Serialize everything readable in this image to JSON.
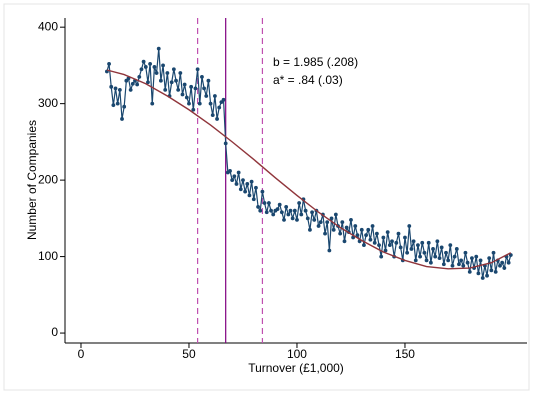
{
  "chart_data": {
    "type": "line",
    "xlabel": "Turnover (£1,000)",
    "ylabel": "Number of Companies",
    "xlim": [
      -7.4,
      206.5
    ],
    "ylim": [
      -13,
      412
    ],
    "xticks": [
      0,
      50,
      100,
      150
    ],
    "yticks": [
      0,
      100,
      200,
      300,
      400
    ],
    "grid": false,
    "series": [
      {
        "color": "#1a476f",
        "markers": true,
        "x": [
          12,
          13,
          14,
          15,
          16,
          17,
          18,
          19,
          20,
          21,
          22,
          23,
          24,
          25,
          26,
          27,
          28,
          29,
          30,
          31,
          32,
          33,
          34,
          35,
          36,
          37,
          38,
          39,
          40,
          41,
          42,
          43,
          44,
          45,
          46,
          47,
          48,
          49,
          50,
          51,
          52,
          53,
          54,
          55,
          56,
          57,
          58,
          59,
          60,
          61,
          62,
          63,
          64,
          65,
          66,
          67,
          68,
          69,
          70,
          71,
          72,
          73,
          74,
          75,
          76,
          77,
          78,
          79,
          80,
          81,
          82,
          83,
          84,
          85,
          86,
          87,
          88,
          89,
          90,
          91,
          92,
          93,
          94,
          95,
          96,
          97,
          98,
          99,
          100,
          101,
          102,
          103,
          104,
          105,
          106,
          107,
          108,
          109,
          110,
          111,
          112,
          113,
          114,
          115,
          116,
          117,
          118,
          119,
          120,
          121,
          122,
          123,
          124,
          125,
          126,
          127,
          128,
          129,
          130,
          131,
          132,
          133,
          134,
          135,
          136,
          137,
          138,
          139,
          140,
          141,
          142,
          143,
          144,
          145,
          146,
          147,
          148,
          149,
          150,
          151,
          152,
          153,
          154,
          155,
          156,
          157,
          158,
          159,
          160,
          161,
          162,
          163,
          164,
          165,
          166,
          167,
          168,
          169,
          170,
          171,
          172,
          173,
          174,
          175,
          176,
          177,
          178,
          179,
          180,
          181,
          182,
          183,
          184,
          185,
          186,
          187,
          188,
          189,
          190,
          191,
          192,
          193,
          194,
          195,
          196,
          197,
          198,
          199
        ],
        "values": [
          342,
          352,
          322,
          298,
          320,
          300,
          318,
          280,
          296,
          330,
          333,
          318,
          326,
          330,
          325,
          335,
          345,
          355,
          348,
          328,
          352,
          300,
          348,
          340,
          372,
          330,
          350,
          318,
          340,
          310,
          328,
          345,
          330,
          318,
          340,
          312,
          325,
          308,
          300,
          322,
          292,
          320,
          345,
          300,
          335,
          320,
          310,
          330,
          300,
          285,
          310,
          280,
          295,
          302,
          305,
          248,
          210,
          212,
          200,
          205,
          195,
          210,
          188,
          200,
          185,
          195,
          180,
          198,
          175,
          190,
          165,
          160,
          185,
          170,
          158,
          170,
          160,
          155,
          160,
          162,
          168,
          158,
          148,
          165,
          155,
          160,
          150,
          160,
          148,
          170,
          155,
          175,
          160,
          150,
          135,
          158,
          148,
          160,
          140,
          145,
          155,
          130,
          145,
          108,
          150,
          135,
          155,
          140,
          130,
          145,
          120,
          138,
          132,
          148,
          125,
          140,
          128,
          120,
          135,
          115,
          128,
          135,
          122,
          140,
          118,
          130,
          115,
          100,
          125,
          108,
          132,
          115,
          120,
          100,
          118,
          130,
          112,
          95,
          125,
          105,
          140,
          110,
          120,
          95,
          115,
          100,
          118,
          105,
          95,
          118,
          92,
          110,
          100,
          120,
          98,
          112,
          90,
          105,
          95,
          115,
          88,
          100,
          110,
          90,
          95,
          88,
          105,
          92,
          80,
          98,
          85,
          100,
          78,
          95,
          72,
          88,
          75,
          98,
          82,
          105,
          80,
          95,
          88,
          92,
          85,
          100,
          92,
          102
        ]
      },
      {
        "color": "#90353b",
        "markers": false,
        "x": [
          12,
          20,
          30,
          40,
          50,
          60,
          70,
          80,
          90,
          100,
          110,
          120,
          130,
          140,
          150,
          160,
          170,
          180,
          190,
          199
        ],
        "values": [
          344,
          338,
          326,
          310,
          292,
          272,
          250,
          227,
          203,
          180,
          158,
          138,
          121,
          106,
          95,
          87,
          84,
          85,
          92,
          105
        ]
      }
    ],
    "reference_lines": [
      {
        "x": 54,
        "color": "#c050b0",
        "dashed": true
      },
      {
        "x": 67,
        "color": "#800080",
        "dashed": false
      },
      {
        "x": 84,
        "color": "#c050b0",
        "dashed": true
      }
    ],
    "annotations": [
      {
        "text": "b = 1.985 (.208)",
        "color": "#1a1aff"
      },
      {
        "text": "a* = .84 (.03)",
        "color": "#e0209a"
      }
    ]
  }
}
